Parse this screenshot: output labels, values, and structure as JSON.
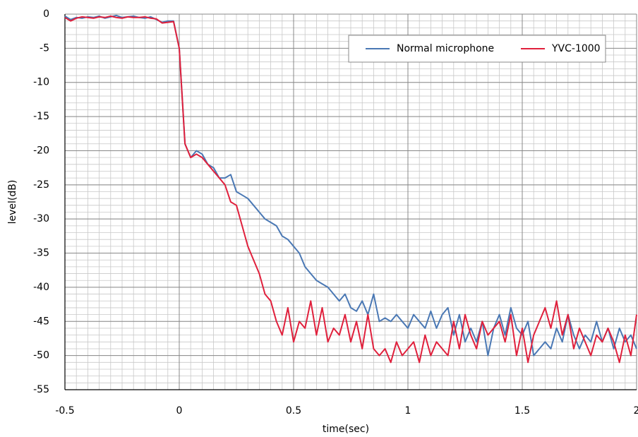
{
  "chart_data": {
    "type": "line",
    "xlabel": "time(sec)",
    "ylabel": "level(dB)",
    "x": [
      -0.5,
      -0.475,
      -0.45,
      -0.425,
      -0.4,
      -0.375,
      -0.35,
      -0.325,
      -0.3,
      -0.275,
      -0.25,
      -0.225,
      -0.2,
      -0.175,
      -0.15,
      -0.125,
      -0.1,
      -0.075,
      -0.05,
      -0.025,
      0,
      0.025,
      0.05,
      0.075,
      0.1,
      0.125,
      0.15,
      0.175,
      0.2,
      0.225,
      0.25,
      0.275,
      0.3,
      0.325,
      0.35,
      0.375,
      0.4,
      0.425,
      0.45,
      0.475,
      0.5,
      0.525,
      0.55,
      0.575,
      0.6,
      0.625,
      0.65,
      0.675,
      0.7,
      0.725,
      0.75,
      0.775,
      0.8,
      0.825,
      0.85,
      0.875,
      0.9,
      0.925,
      0.95,
      0.975,
      1,
      1.025,
      1.05,
      1.075,
      1.1,
      1.125,
      1.15,
      1.175,
      1.2,
      1.225,
      1.25,
      1.275,
      1.3,
      1.325,
      1.35,
      1.375,
      1.4,
      1.425,
      1.45,
      1.475,
      1.5,
      1.525,
      1.55,
      1.575,
      1.6,
      1.625,
      1.65,
      1.675,
      1.7,
      1.725,
      1.75,
      1.775,
      1.8,
      1.825,
      1.85,
      1.875,
      1.9,
      1.925,
      1.95,
      1.975,
      2
    ],
    "series": [
      {
        "name": "Normal microphone",
        "color": "#4a78b4",
        "values": [
          -0.3,
          -0.8,
          -0.5,
          -0.6,
          -0.4,
          -0.5,
          -0.3,
          -0.6,
          -0.4,
          -0.2,
          -0.5,
          -0.4,
          -0.3,
          -0.5,
          -0.6,
          -0.4,
          -0.8,
          -1.2,
          -1.0,
          -1.0,
          -5,
          -19,
          -21,
          -20,
          -20.5,
          -22,
          -22.5,
          -24,
          -24,
          -23.5,
          -26,
          -26.5,
          -27,
          -28,
          -29,
          -30,
          -30.5,
          -31,
          -32.5,
          -33,
          -34,
          -35,
          -37,
          -38,
          -39,
          -39.5,
          -40,
          -41,
          -42,
          -41,
          -43,
          -43.5,
          -42,
          -44,
          -41,
          -45,
          -44.5,
          -45,
          -44,
          -45,
          -46,
          -44,
          -45,
          -46,
          -43.5,
          -46,
          -44,
          -43,
          -47,
          -44,
          -48,
          -46,
          -48,
          -45,
          -50,
          -46,
          -44,
          -47,
          -43,
          -46,
          -47,
          -45,
          -50,
          -49,
          -48,
          -49,
          -46,
          -48,
          -44,
          -47,
          -49,
          -47,
          -48,
          -45,
          -48,
          -46,
          -49,
          -46,
          -48,
          -47,
          -49
        ]
      },
      {
        "name": "YVC-1000",
        "color": "#e0203c",
        "values": [
          -0.5,
          -1.0,
          -0.6,
          -0.4,
          -0.5,
          -0.6,
          -0.4,
          -0.5,
          -0.3,
          -0.5,
          -0.6,
          -0.4,
          -0.5,
          -0.5,
          -0.4,
          -0.6,
          -0.7,
          -1.3,
          -1.2,
          -1.1,
          -5,
          -19,
          -21,
          -20.5,
          -21,
          -22,
          -23,
          -24,
          -25,
          -27.5,
          -28,
          -31,
          -34,
          -36,
          -38,
          -41,
          -42,
          -45,
          -47,
          -43,
          -48,
          -45,
          -46,
          -42,
          -47,
          -43,
          -48,
          -46,
          -47,
          -44,
          -48,
          -45,
          -49,
          -44,
          -49,
          -50,
          -49,
          -51,
          -48,
          -50,
          -49,
          -48,
          -51,
          -47,
          -50,
          -48,
          -49,
          -50,
          -45,
          -49,
          -44,
          -47,
          -49,
          -45,
          -47,
          -46,
          -45,
          -48,
          -44,
          -50,
          -46,
          -51,
          -47,
          -45,
          -43,
          -46,
          -42,
          -47,
          -44,
          -49,
          -46,
          -48,
          -50,
          -47,
          -48,
          -46,
          -48,
          -51,
          -47,
          -50,
          -44
        ]
      }
    ],
    "xlim": [
      -0.5,
      2
    ],
    "xticks": [
      -0.5,
      0,
      0.5,
      1,
      1.5,
      2
    ],
    "ylim": [
      -55,
      0
    ],
    "yticks": [
      0,
      -5,
      -10,
      -15,
      -20,
      -25,
      -30,
      -35,
      -40,
      -45,
      -50,
      -55
    ],
    "grid": true,
    "minor_grid": {
      "x": 0.05,
      "y": 1
    },
    "legend": "upper right"
  }
}
